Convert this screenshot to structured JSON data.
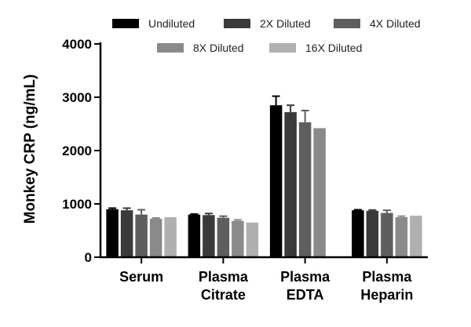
{
  "chart_data": {
    "type": "bar",
    "title": "",
    "xlabel": "",
    "ylabel": "Monkey CRP (ng/mL)",
    "ylim": [
      0,
      4000
    ],
    "yticks": [
      "0",
      "1000",
      "2000",
      "3000",
      "4000"
    ],
    "ytick_values": [
      0,
      1000,
      2000,
      3000,
      4000
    ],
    "grid": false,
    "legend_position": "top",
    "categories": [
      {
        "line1": "Serum",
        "line2": ""
      },
      {
        "line1": "Plasma",
        "line2": "Citrate"
      },
      {
        "line1": "Plasma",
        "line2": "EDTA"
      },
      {
        "line1": "Plasma",
        "line2": "Heparin"
      }
    ],
    "series": [
      {
        "name": "Undiluted",
        "color": "#000000",
        "values": [
          900,
          800,
          2850,
          880
        ],
        "errors": [
          20,
          10,
          170,
          10
        ]
      },
      {
        "name": "2X Diluted",
        "color": "#3a3a3a",
        "values": [
          880,
          790,
          2720,
          870
        ],
        "errors": [
          40,
          30,
          130,
          15
        ]
      },
      {
        "name": "4X Diluted",
        "color": "#5e5e5e",
        "values": [
          800,
          740,
          2530,
          830
        ],
        "errors": [
          90,
          30,
          220,
          50
        ]
      },
      {
        "name": "8X Diluted",
        "color": "#8a8a8a",
        "values": [
          720,
          680,
          2420,
          750
        ],
        "errors": [
          15,
          20,
          0,
          20
        ]
      },
      {
        "name": "16X Diluted",
        "color": "#b0b0b0",
        "values": [
          750,
          650,
          0,
          780
        ],
        "errors": [
          0,
          0,
          0,
          0
        ]
      }
    ]
  }
}
